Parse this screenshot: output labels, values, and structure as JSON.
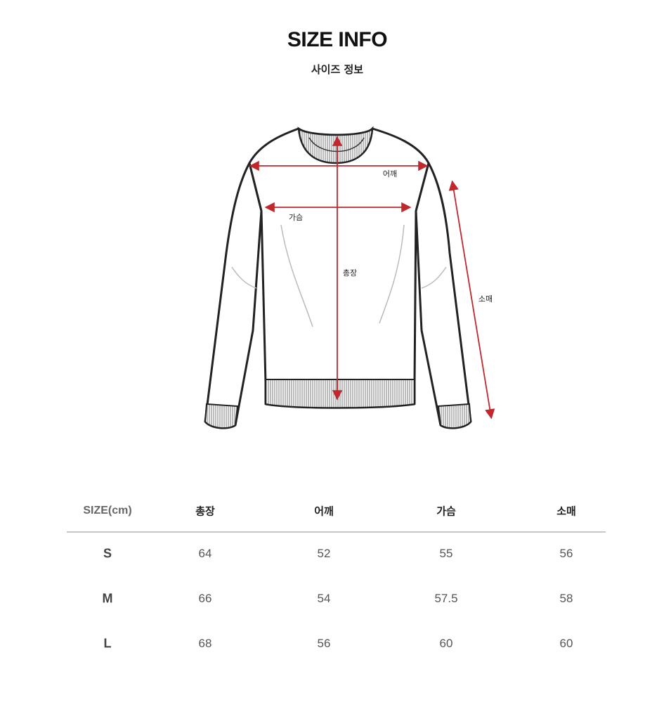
{
  "title": "SIZE INFO",
  "subtitle": "사이즈 정보",
  "diagram": {
    "labels": {
      "shoulder": "어깨",
      "chest": "가슴",
      "length": "총장",
      "sleeve": "소매"
    },
    "arrow_color": "#c0282d"
  },
  "table": {
    "headers": [
      "SIZE(cm)",
      "총장",
      "어깨",
      "가슴",
      "소매"
    ],
    "rows": [
      [
        "S",
        "64",
        "52",
        "55",
        "56"
      ],
      [
        "M",
        "66",
        "54",
        "57.5",
        "58"
      ],
      [
        "L",
        "68",
        "56",
        "60",
        "60"
      ]
    ]
  }
}
